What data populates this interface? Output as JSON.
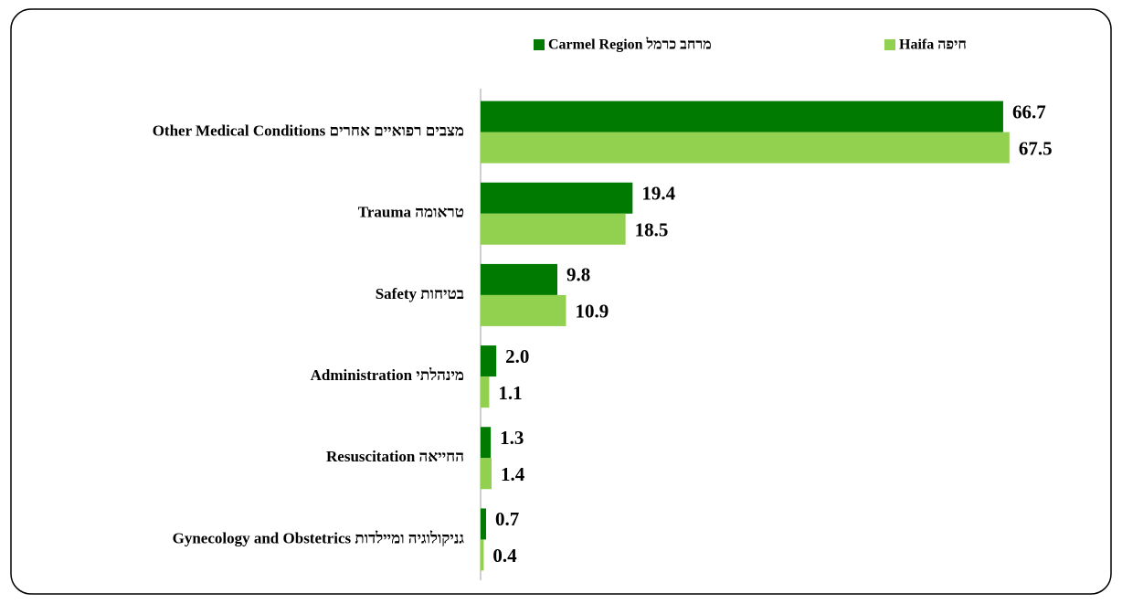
{
  "chart_data": {
    "type": "bar",
    "orientation": "horizontal",
    "categories": [
      "Other Medical Conditions מצבים רפואיים אחרים",
      "Trauma טראומה",
      "Safety בטיחות",
      "Administration מינהלתי",
      "Resuscitation החייאה",
      "Gynecology and Obstetrics גניקולוגיה ומיילדות"
    ],
    "series": [
      {
        "name": "Carmel Region מרחב כרמל",
        "color": "#007a00",
        "values": [
          66.7,
          19.4,
          9.8,
          2.0,
          1.3,
          0.7
        ],
        "value_labels": [
          "66.7",
          "19.4",
          "9.8",
          "2.0",
          "1.3",
          "0.7"
        ]
      },
      {
        "name": "Haifa חיפה",
        "color": "#92d050",
        "values": [
          67.5,
          18.5,
          10.9,
          1.1,
          1.4,
          0.4
        ],
        "value_labels": [
          "67.5",
          "18.5",
          "10.9",
          "1.1",
          "1.4",
          "0.4"
        ]
      }
    ],
    "xlim": [
      0,
      80
    ],
    "grid": false
  }
}
